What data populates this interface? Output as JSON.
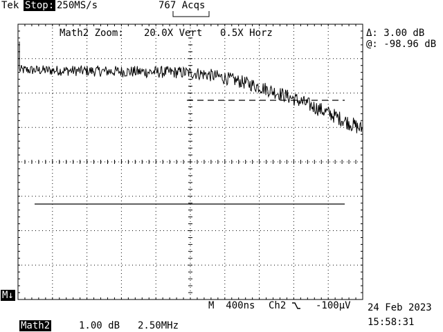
{
  "header": {
    "brand": "Tek",
    "run_state": "Stop:",
    "sample_rate": "250MS/s",
    "acquisitions": "767 Acqs"
  },
  "zoom": {
    "label": "Math2 Zoom:",
    "vertical": "20.0X Vert",
    "horizontal": "0.5X Horz"
  },
  "cursor": {
    "delta": "Δ: 3.00 dB",
    "at": "@: -98.96 dB"
  },
  "marker": "M↓",
  "footer": {
    "timebase": "M  400ns",
    "trigger_channel": "Ch2",
    "trigger_slope_icon": "falling-edge-icon",
    "trigger_level": "-100µV",
    "date": "24 Feb 2023",
    "time": "15:58:31",
    "math_channel": "Math2",
    "math_scale": "1.00 dB",
    "math_freq": "2.50MHz"
  },
  "colors": {
    "background": "#ffffff",
    "trace": "#000000",
    "grid": "#000000"
  },
  "trace": {
    "start_db": -97.3,
    "knee_fraction": 0.48,
    "end_db": -101.6,
    "noise_db": 0.35
  }
}
